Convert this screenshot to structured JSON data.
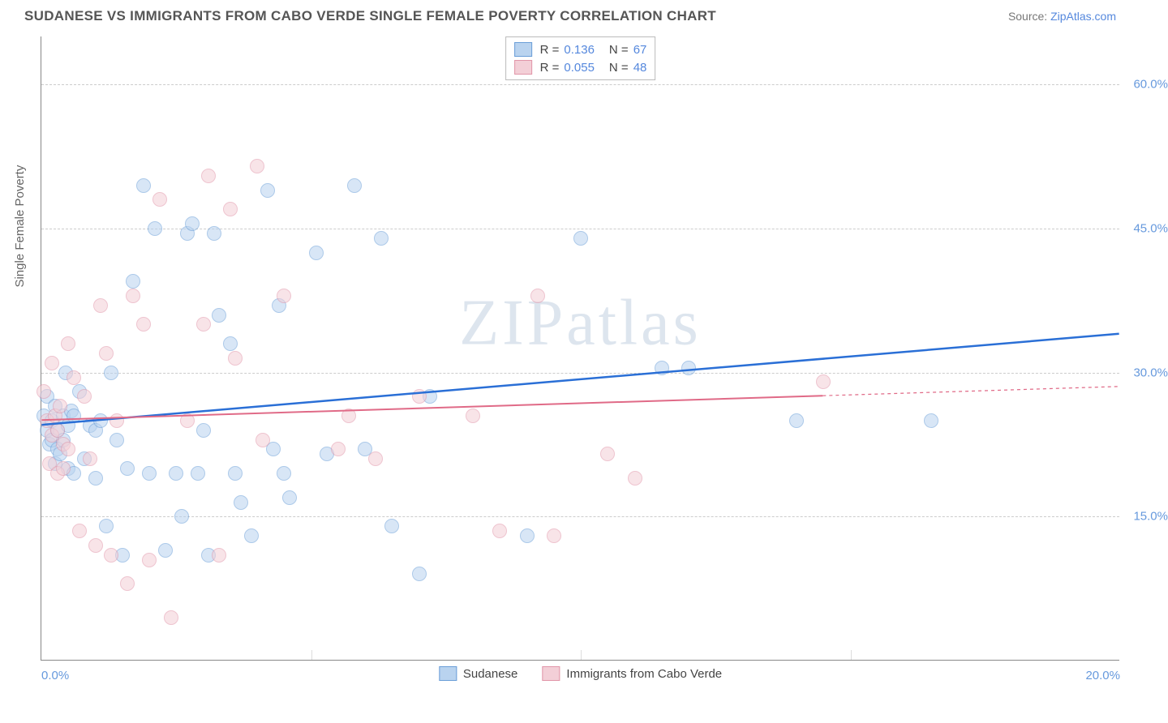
{
  "title": "SUDANESE VS IMMIGRANTS FROM CABO VERDE SINGLE FEMALE POVERTY CORRELATION CHART",
  "source_prefix": "Source: ",
  "source_name": "ZipAtlas.com",
  "watermark": "ZIPatlas",
  "y_axis_label": "Single Female Poverty",
  "chart": {
    "type": "scatter",
    "xlim": [
      0,
      20
    ],
    "ylim": [
      0,
      65
    ],
    "x_ticks": [
      0,
      20
    ],
    "x_tick_labels": [
      "0.0%",
      "20.0%"
    ],
    "x_minor_ticks": [
      5,
      10,
      15
    ],
    "y_ticks": [
      15,
      30,
      45,
      60
    ],
    "y_tick_labels": [
      "15.0%",
      "30.0%",
      "45.0%",
      "60.0%"
    ],
    "grid_color": "#cccccc",
    "background_color": "#ffffff",
    "marker_radius": 9,
    "series": [
      {
        "name": "Sudanese",
        "color_fill": "#b9d3ef",
        "color_stroke": "#6a9ed8",
        "trend_color": "#2a6fd6",
        "trend_width": 2.5,
        "trend": {
          "y_at_x0": 24.5,
          "y_at_xmax": 34.0,
          "solid_until_x": 20
        },
        "R": "0.136",
        "N": "67",
        "points": [
          [
            0.05,
            25.5
          ],
          [
            0.1,
            24.0
          ],
          [
            0.1,
            27.5
          ],
          [
            0.15,
            22.5
          ],
          [
            0.2,
            23.0
          ],
          [
            0.2,
            25.0
          ],
          [
            0.25,
            20.5
          ],
          [
            0.25,
            26.5
          ],
          [
            0.3,
            24.0
          ],
          [
            0.3,
            22.0
          ],
          [
            0.35,
            21.5
          ],
          [
            0.4,
            25.5
          ],
          [
            0.4,
            23.0
          ],
          [
            0.45,
            30.0
          ],
          [
            0.5,
            24.5
          ],
          [
            0.5,
            20.0
          ],
          [
            0.55,
            26.0
          ],
          [
            0.6,
            25.5
          ],
          [
            0.6,
            19.5
          ],
          [
            0.7,
            28.0
          ],
          [
            0.8,
            21.0
          ],
          [
            0.9,
            24.5
          ],
          [
            1.0,
            19.0
          ],
          [
            1.0,
            24.0
          ],
          [
            1.1,
            25.0
          ],
          [
            1.2,
            14.0
          ],
          [
            1.3,
            30.0
          ],
          [
            1.4,
            23.0
          ],
          [
            1.5,
            11.0
          ],
          [
            1.6,
            20.0
          ],
          [
            1.7,
            39.5
          ],
          [
            1.9,
            49.5
          ],
          [
            2.0,
            19.5
          ],
          [
            2.1,
            45.0
          ],
          [
            2.3,
            11.5
          ],
          [
            2.5,
            19.5
          ],
          [
            2.6,
            15.0
          ],
          [
            2.7,
            44.5
          ],
          [
            2.8,
            45.5
          ],
          [
            2.9,
            19.5
          ],
          [
            3.0,
            24.0
          ],
          [
            3.1,
            11.0
          ],
          [
            3.2,
            44.5
          ],
          [
            3.3,
            36.0
          ],
          [
            3.5,
            33.0
          ],
          [
            3.6,
            19.5
          ],
          [
            3.7,
            16.5
          ],
          [
            3.9,
            13.0
          ],
          [
            4.2,
            49.0
          ],
          [
            4.3,
            22.0
          ],
          [
            4.4,
            37.0
          ],
          [
            4.5,
            19.5
          ],
          [
            4.6,
            17.0
          ],
          [
            5.1,
            42.5
          ],
          [
            5.3,
            21.5
          ],
          [
            5.8,
            49.5
          ],
          [
            6.0,
            22.0
          ],
          [
            6.3,
            44.0
          ],
          [
            6.5,
            14.0
          ],
          [
            7.0,
            9.0
          ],
          [
            7.2,
            27.5
          ],
          [
            9.0,
            13.0
          ],
          [
            10.0,
            44.0
          ],
          [
            11.5,
            30.5
          ],
          [
            12.0,
            30.5
          ],
          [
            14.0,
            25.0
          ],
          [
            16.5,
            25.0
          ]
        ]
      },
      {
        "name": "Immigrants from Cabo Verde",
        "color_fill": "#f3cfd7",
        "color_stroke": "#e195a8",
        "trend_color": "#e06a87",
        "trend_width": 2,
        "trend": {
          "y_at_x0": 25.0,
          "y_at_xmax": 28.5,
          "solid_until_x": 14.5
        },
        "R": "0.055",
        "N": "48",
        "points": [
          [
            0.05,
            28.0
          ],
          [
            0.1,
            25.0
          ],
          [
            0.15,
            20.5
          ],
          [
            0.2,
            31.0
          ],
          [
            0.2,
            23.5
          ],
          [
            0.25,
            25.5
          ],
          [
            0.3,
            19.5
          ],
          [
            0.3,
            24.0
          ],
          [
            0.35,
            26.5
          ],
          [
            0.4,
            20.0
          ],
          [
            0.4,
            22.5
          ],
          [
            0.5,
            33.0
          ],
          [
            0.5,
            22.0
          ],
          [
            0.6,
            29.5
          ],
          [
            0.7,
            13.5
          ],
          [
            0.8,
            27.5
          ],
          [
            0.9,
            21.0
          ],
          [
            1.0,
            12.0
          ],
          [
            1.1,
            37.0
          ],
          [
            1.2,
            32.0
          ],
          [
            1.3,
            11.0
          ],
          [
            1.4,
            25.0
          ],
          [
            1.6,
            8.0
          ],
          [
            1.7,
            38.0
          ],
          [
            1.9,
            35.0
          ],
          [
            2.0,
            10.5
          ],
          [
            2.2,
            48.0
          ],
          [
            2.4,
            4.5
          ],
          [
            2.7,
            25.0
          ],
          [
            3.0,
            35.0
          ],
          [
            3.1,
            50.5
          ],
          [
            3.3,
            11.0
          ],
          [
            3.5,
            47.0
          ],
          [
            3.6,
            31.5
          ],
          [
            4.0,
            51.5
          ],
          [
            4.1,
            23.0
          ],
          [
            4.5,
            38.0
          ],
          [
            5.5,
            22.0
          ],
          [
            5.7,
            25.5
          ],
          [
            6.2,
            21.0
          ],
          [
            7.0,
            27.5
          ],
          [
            8.0,
            25.5
          ],
          [
            8.5,
            13.5
          ],
          [
            9.2,
            38.0
          ],
          [
            9.5,
            13.0
          ],
          [
            10.5,
            21.5
          ],
          [
            11.0,
            19.0
          ],
          [
            14.5,
            29.0
          ]
        ]
      }
    ]
  }
}
